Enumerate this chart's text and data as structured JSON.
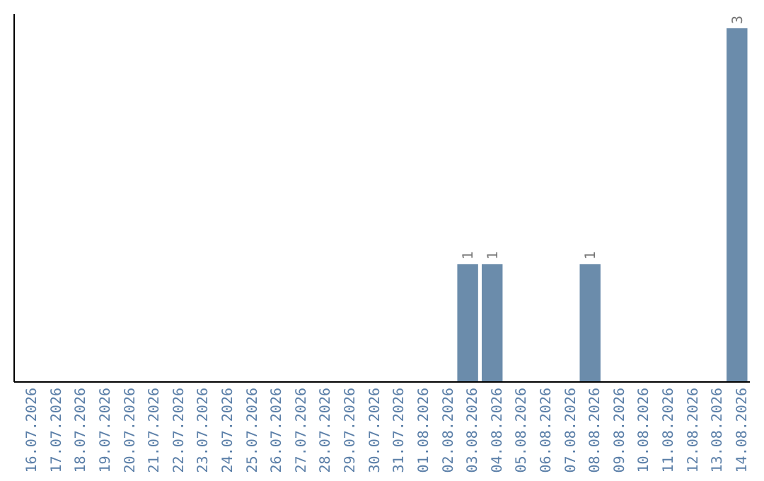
{
  "chart_data": {
    "type": "bar",
    "categories": [
      "16.07.2026",
      "17.07.2026",
      "18.07.2026",
      "19.07.2026",
      "20.07.2026",
      "21.07.2026",
      "22.07.2026",
      "23.07.2026",
      "24.07.2026",
      "25.07.2026",
      "26.07.2026",
      "27.07.2026",
      "28.07.2026",
      "29.07.2026",
      "30.07.2026",
      "31.07.2026",
      "01.08.2026",
      "02.08.2026",
      "03.08.2026",
      "04.08.2026",
      "05.08.2026",
      "06.08.2026",
      "07.08.2026",
      "08.08.2026",
      "09.08.2026",
      "10.08.2026",
      "11.08.2026",
      "12.08.2026",
      "13.08.2026",
      "14.08.2026"
    ],
    "values": [
      null,
      null,
      null,
      null,
      null,
      null,
      null,
      null,
      null,
      null,
      null,
      null,
      null,
      null,
      null,
      null,
      null,
      null,
      1,
      1,
      null,
      null,
      null,
      1,
      null,
      null,
      null,
      null,
      null,
      3
    ],
    "data_labels": true,
    "color": "#6b8cab",
    "grid": false
  }
}
